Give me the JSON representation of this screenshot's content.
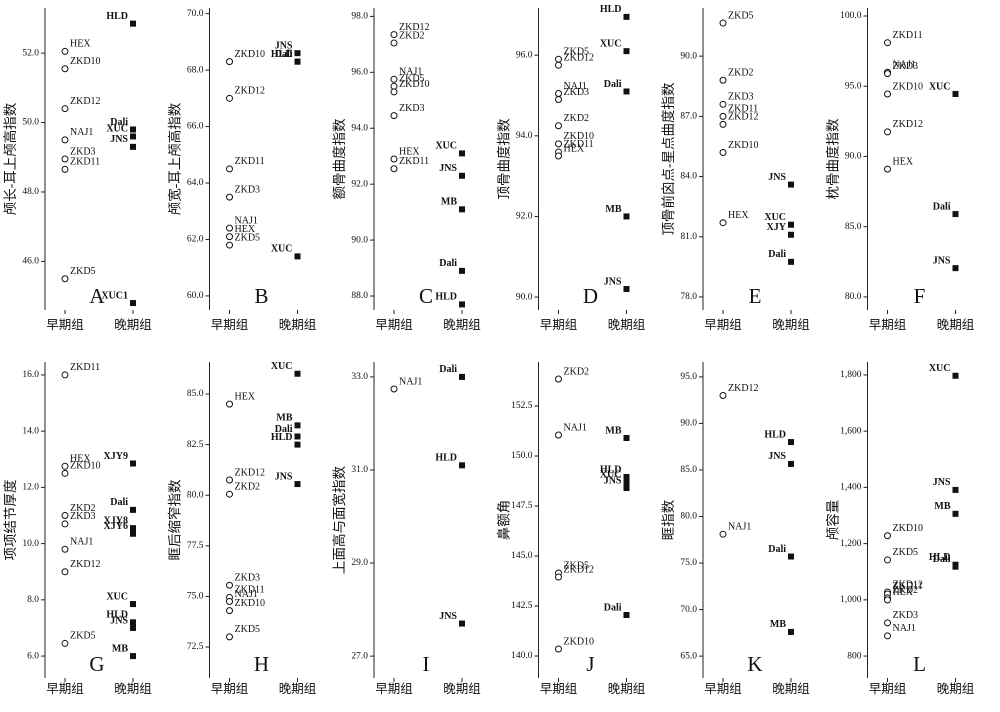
{
  "chart_data": [
    {
      "type": "scatter",
      "letter": "A",
      "ylabel": "颅长-耳上颅高指数",
      "categories": [
        "早期组",
        "晚期组"
      ],
      "ylim": [
        44.6,
        53.3
      ],
      "yticks": [
        {
          "value": 46,
          "label": "46.0"
        },
        {
          "value": 48,
          "label": "48.0"
        },
        {
          "value": 50,
          "label": "50.0"
        },
        {
          "value": 52,
          "label": "52.0"
        }
      ],
      "series": [
        {
          "marker": "circle",
          "labels": [
            "HEX",
            "ZKD10",
            "ZKD12",
            "NAJ1",
            "ZKD3",
            "ZKD11",
            "ZKD5"
          ],
          "values": [
            52.05,
            51.55,
            50.4,
            49.5,
            48.95,
            48.65,
            45.5
          ]
        },
        {
          "marker": "square",
          "labels": [
            "HLD",
            "Dali",
            "XUC",
            "JNS",
            "XUC1"
          ],
          "values": [
            52.85,
            49.8,
            49.6,
            49.3,
            44.8
          ]
        }
      ]
    },
    {
      "type": "scatter",
      "letter": "B",
      "ylabel": "颅宽-耳上颅高指数",
      "categories": [
        "早期组",
        "晚期组"
      ],
      "ylim": [
        59.5,
        70.2
      ],
      "yticks": [
        {
          "value": 60,
          "label": "60.0"
        },
        {
          "value": 62,
          "label": "62.0"
        },
        {
          "value": 64,
          "label": "64.0"
        },
        {
          "value": 66,
          "label": "66.0"
        },
        {
          "value": 68,
          "label": "68.0"
        },
        {
          "value": 70,
          "label": "70.0"
        }
      ],
      "series": [
        {
          "marker": "circle",
          "labels": [
            "ZKD10",
            "ZKD12",
            "ZKD11",
            "ZKD3",
            "NAJ1",
            "HEX",
            "ZKD5"
          ],
          "values": [
            68.3,
            67.0,
            64.5,
            63.5,
            62.4,
            62.1,
            61.8
          ]
        },
        {
          "marker": "square",
          "labels": [
            "JNS",
            "HLD",
            "Dali",
            "XUC"
          ],
          "values": [
            68.6,
            68.3,
            68.3,
            61.4
          ]
        }
      ]
    },
    {
      "type": "scatter",
      "letter": "C",
      "ylabel": "额骨曲度指数",
      "categories": [
        "早期组",
        "晚期组"
      ],
      "ylim": [
        87.5,
        98.3
      ],
      "yticks": [
        {
          "value": 88,
          "label": "88.0"
        },
        {
          "value": 90,
          "label": "90.0"
        },
        {
          "value": 92,
          "label": "92.0"
        },
        {
          "value": 94,
          "label": "94.0"
        },
        {
          "value": 96,
          "label": "96.0"
        },
        {
          "value": 98,
          "label": "98.0"
        }
      ],
      "series": [
        {
          "marker": "circle",
          "labels": [
            "ZKD12",
            "ZKD2",
            "NAJ1",
            "ZKD5",
            "ZKD10",
            "ZKD3",
            "HEX",
            "ZKD11"
          ],
          "values": [
            97.35,
            97.05,
            95.75,
            95.5,
            95.3,
            94.45,
            92.9,
            92.55
          ]
        },
        {
          "marker": "square",
          "labels": [
            "XUC",
            "JNS",
            "MB",
            "Dali",
            "HLD"
          ],
          "values": [
            93.1,
            92.3,
            91.1,
            88.9,
            87.7
          ]
        }
      ]
    },
    {
      "type": "scatter",
      "letter": "D",
      "ylabel": "顶骨曲度指数",
      "categories": [
        "早期组",
        "晚期组"
      ],
      "ylim": [
        89.68,
        97.17
      ],
      "yticks": [
        {
          "value": 90,
          "label": "90.0"
        },
        {
          "value": 92,
          "label": "92.0"
        },
        {
          "value": 94,
          "label": "94.0"
        },
        {
          "value": 96,
          "label": "96.0"
        }
      ],
      "series": [
        {
          "marker": "circle",
          "labels": [
            "ZKD5",
            "ZKD12",
            "NAJ1",
            "ZKD3",
            "ZKD2",
            "ZKD10",
            "ZKD11",
            "HEX"
          ],
          "values": [
            95.9,
            95.75,
            95.05,
            94.9,
            94.25,
            93.8,
            93.6,
            93.5
          ]
        },
        {
          "marker": "square",
          "labels": [
            "HLD",
            "XUC",
            "Dali",
            "MB",
            "JNS"
          ],
          "values": [
            96.95,
            96.1,
            95.1,
            92.0,
            90.2
          ]
        }
      ]
    },
    {
      "type": "scatter",
      "letter": "E",
      "ylabel": "顶骨前囟点-星点曲度指数",
      "categories": [
        "早期组",
        "晚期组"
      ],
      "ylim": [
        77.35,
        92.4
      ],
      "yticks": [
        {
          "value": 78,
          "label": "78.0"
        },
        {
          "value": 81,
          "label": "81.0"
        },
        {
          "value": 84,
          "label": "84.0"
        },
        {
          "value": 87,
          "label": "87.0"
        },
        {
          "value": 90,
          "label": "90.0"
        }
      ],
      "series": [
        {
          "marker": "circle",
          "labels": [
            "ZKD5",
            "ZKD2",
            "ZKD3",
            "ZKD11",
            "ZKD12",
            "ZKD10",
            "HEX"
          ],
          "values": [
            91.65,
            88.8,
            87.6,
            87.0,
            86.6,
            85.2,
            81.7
          ]
        },
        {
          "marker": "square",
          "labels": [
            "JNS",
            "XUC",
            "XJY",
            "Dali"
          ],
          "values": [
            83.6,
            81.6,
            81.1,
            79.75
          ]
        }
      ]
    },
    {
      "type": "scatter",
      "letter": "F",
      "ylabel": "枕骨曲度指数",
      "categories": [
        "早期组",
        "晚期组"
      ],
      "ylim": [
        79.07,
        100.57
      ],
      "yticks": [
        {
          "value": 80,
          "label": "80.0"
        },
        {
          "value": 85,
          "label": "85.0"
        },
        {
          "value": 90,
          "label": "90.0"
        },
        {
          "value": 95,
          "label": "95.0"
        },
        {
          "value": 100,
          "label": "100.0"
        }
      ],
      "series": [
        {
          "marker": "circle",
          "labels": [
            "ZKD11",
            "NAJ1",
            "ZKD3",
            "ZKD10",
            "ZKD12",
            "HEX"
          ],
          "values": [
            98.1,
            96.0,
            95.9,
            94.45,
            91.75,
            89.1
          ]
        },
        {
          "marker": "square",
          "labels": [
            "XUC",
            "Dali",
            "JNS"
          ],
          "values": [
            94.45,
            85.9,
            82.05
          ]
        }
      ]
    },
    {
      "type": "scatter",
      "letter": "G",
      "ylabel": "项项结节厚度",
      "categories": [
        "早期组",
        "晚期组"
      ],
      "ylim": [
        5.22,
        16.46
      ],
      "yticks": [
        {
          "value": 6,
          "label": "6.0"
        },
        {
          "value": 8,
          "label": "8.0"
        },
        {
          "value": 10,
          "label": "10.0"
        },
        {
          "value": 12,
          "label": "12.0"
        },
        {
          "value": 14,
          "label": "14.0"
        },
        {
          "value": 16,
          "label": "16.0"
        }
      ],
      "series": [
        {
          "marker": "circle",
          "labels": [
            "ZKD11",
            "HEX",
            "ZKD10",
            "ZKD2",
            "ZKD3",
            "NAJ1",
            "ZKD12",
            "ZKD5"
          ],
          "values": [
            16.0,
            12.75,
            12.5,
            11.0,
            10.7,
            9.8,
            9.0,
            6.45
          ]
        },
        {
          "marker": "square",
          "labels": [
            "XJY9",
            "Dali",
            "XJY8",
            "XJY6",
            "XUC",
            "HLD",
            "JNS",
            "MB"
          ],
          "values": [
            12.85,
            11.2,
            10.55,
            10.35,
            7.85,
            7.2,
            7.0,
            6.0
          ]
        }
      ]
    },
    {
      "type": "scatter",
      "letter": "H",
      "ylabel": "眶后缩窄指数",
      "categories": [
        "早期组",
        "晚期组"
      ],
      "ylim": [
        70.97,
        86.58
      ],
      "yticks": [
        72.5,
        {
          "value": 75,
          "label": "75.0"
        },
        77.5,
        {
          "value": 80,
          "label": "80.0"
        },
        82.5,
        {
          "value": 85,
          "label": "85.0"
        }
      ],
      "series": [
        {
          "marker": "circle",
          "labels": [
            "HEX",
            "ZKD12",
            "ZKD2",
            "ZKD3",
            "ZKD11",
            "NAJ1",
            "ZKD10",
            "ZKD5"
          ],
          "values": [
            84.5,
            80.75,
            80.05,
            75.55,
            74.95,
            74.75,
            74.3,
            73.0
          ]
        },
        {
          "marker": "square",
          "labels": [
            "XUC",
            "MB",
            "Dali",
            "HLD",
            "JNS"
          ],
          "values": [
            86.0,
            83.45,
            82.9,
            82.5,
            80.55
          ]
        }
      ]
    },
    {
      "type": "scatter",
      "letter": "I",
      "ylabel": "上面高与面宽指数",
      "categories": [
        "早期组",
        "晚期组"
      ],
      "ylim": [
        26.53,
        33.32
      ],
      "yticks": [
        {
          "value": 27,
          "label": "27.0"
        },
        {
          "value": 29,
          "label": "29.0"
        },
        {
          "value": 31,
          "label": "31.0"
        },
        {
          "value": 33,
          "label": "33.0"
        }
      ],
      "series": [
        {
          "marker": "circle",
          "labels": [
            "NAJ1"
          ],
          "values": [
            32.74
          ]
        },
        {
          "marker": "square",
          "labels": [
            "Dali",
            "HLD",
            "JNS"
          ],
          "values": [
            33.0,
            31.1,
            27.7
          ]
        }
      ]
    },
    {
      "type": "scatter",
      "letter": "J",
      "ylabel": "鼻额角",
      "categories": [
        "早期组",
        "晚期组"
      ],
      "ylim": [
        138.9,
        154.7
      ],
      "yticks": [
        {
          "value": 140,
          "label": "140.0"
        },
        142.5,
        {
          "value": 145,
          "label": "145.0"
        },
        147.5,
        {
          "value": 150,
          "label": "150.0"
        },
        152.5
      ],
      "series": [
        {
          "marker": "circle",
          "labels": [
            "ZKD2",
            "NAJ1",
            "ZKD5",
            "ZKD12",
            "ZKD10"
          ],
          "values": [
            153.85,
            151.05,
            144.15,
            143.95,
            140.35
          ]
        },
        {
          "marker": "square",
          "labels": [
            "MB",
            "HLD",
            "XUC",
            "JNS",
            "Dali"
          ],
          "values": [
            150.9,
            148.95,
            148.7,
            148.4,
            142.05
          ]
        }
      ]
    },
    {
      "type": "scatter",
      "letter": "K",
      "ylabel": "眶指数",
      "categories": [
        "早期组",
        "晚期组"
      ],
      "ylim": [
        62.65,
        96.6
      ],
      "yticks": [
        {
          "value": 65,
          "label": "65.0"
        },
        {
          "value": 70,
          "label": "70.0"
        },
        {
          "value": 75,
          "label": "75.0"
        },
        {
          "value": 80,
          "label": "80.0"
        },
        {
          "value": 85,
          "label": "85.0"
        },
        {
          "value": 90,
          "label": "90.0"
        },
        {
          "value": 95,
          "label": "95.0"
        }
      ],
      "series": [
        {
          "marker": "circle",
          "labels": [
            "ZKD12",
            "NAJ1"
          ],
          "values": [
            93.0,
            78.1
          ]
        },
        {
          "marker": "square",
          "labels": [
            "HLD",
            "JNS",
            "Dali",
            "MB"
          ],
          "values": [
            88.0,
            85.65,
            75.7,
            67.6
          ]
        }
      ]
    },
    {
      "type": "scatter",
      "letter": "L",
      "ylabel": "颅容量",
      "categories": [
        "早期组",
        "晚期组"
      ],
      "ylim": [
        722,
        1846
      ],
      "yticks": [
        800,
        {
          "value": 1000,
          "label": "1,000"
        },
        {
          "value": 1200,
          "label": "1,200"
        },
        {
          "value": 1400,
          "label": "1,400"
        },
        {
          "value": 1600,
          "label": "1,600"
        },
        {
          "value": 1800,
          "label": "1,800"
        }
      ],
      "series": [
        {
          "marker": "circle",
          "labels": [
            "ZKD10",
            "ZKD5",
            "ZKD12",
            "ZKD11",
            "ZKD2",
            "HEX",
            "ZKD3",
            "NAJ1"
          ],
          "values": [
            1228,
            1142,
            1028,
            1021,
            1007,
            1000,
            918,
            872
          ]
        },
        {
          "marker": "square",
          "labels": [
            "XUC",
            "JNS",
            "MB",
            "HLD",
            "Dali"
          ],
          "values": [
            1797,
            1391,
            1306,
            1125,
            1118
          ]
        }
      ]
    }
  ]
}
